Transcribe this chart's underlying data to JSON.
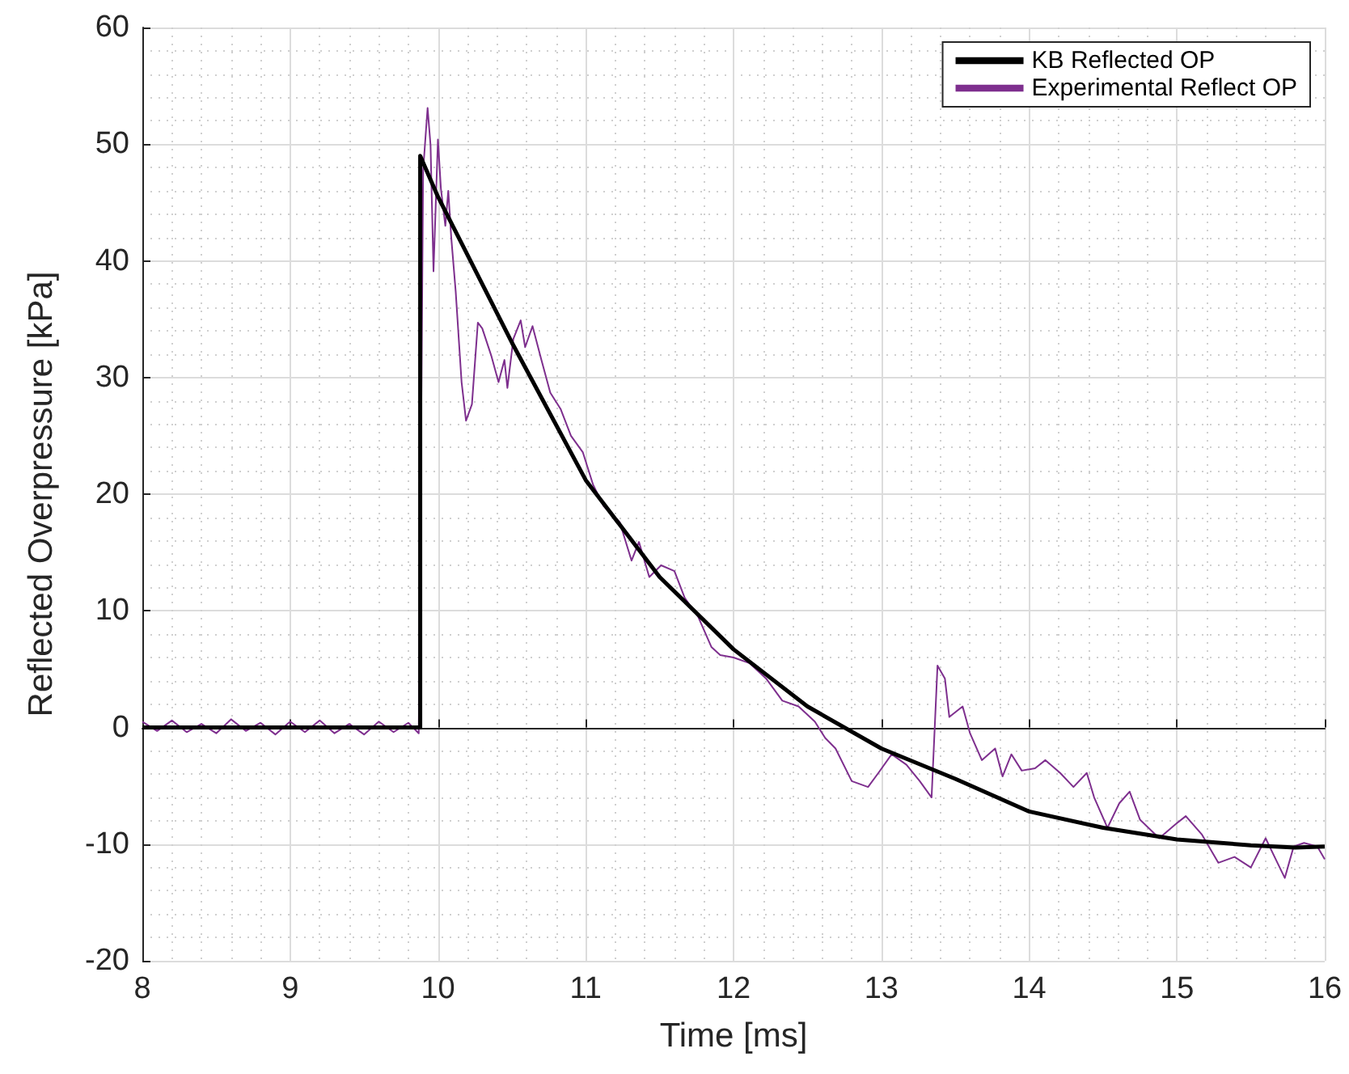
{
  "chart_data": {
    "type": "line",
    "xlabel": "Time [ms]",
    "ylabel": "Reflected Overpressure [kPa]",
    "xlim": [
      8,
      16
    ],
    "xticks": [
      8,
      9,
      10,
      11,
      12,
      13,
      14,
      15,
      16
    ],
    "ylim": [
      -20,
      60
    ],
    "yticks": [
      -20,
      -10,
      0,
      10,
      20,
      30,
      40,
      50,
      60
    ],
    "grid": true,
    "legend": "top right",
    "marker": "none",
    "line_style": "solid",
    "series": [
      {
        "name": "KB Reflected OP",
        "color": "#000000",
        "x": [
          8,
          9.88,
          9.88,
          10,
          10.5,
          11,
          11.5,
          12,
          12.5,
          13,
          13.5,
          14,
          14.5,
          15,
          15.5,
          15.8,
          16
        ],
        "values": [
          0,
          0,
          49,
          45.5,
          33,
          21.2,
          12.9,
          6.7,
          1.8,
          -1.8,
          -4.4,
          -7.2,
          -8.6,
          -9.6,
          -10.1,
          -10.3,
          -10.2
        ]
      },
      {
        "name": "Experimental Reflect OP",
        "color": "#7e2f8e",
        "x": [
          8,
          8.1,
          8.2,
          8.3,
          8.4,
          8.5,
          8.6,
          8.7,
          8.8,
          8.9,
          9.0,
          9.1,
          9.2,
          9.3,
          9.4,
          9.5,
          9.6,
          9.7,
          9.8,
          9.87,
          9.9,
          9.93,
          9.95,
          9.97,
          10.0,
          10.02,
          10.05,
          10.07,
          10.09,
          10.12,
          10.16,
          10.19,
          10.23,
          10.27,
          10.3,
          10.36,
          10.41,
          10.45,
          10.47,
          10.51,
          10.56,
          10.59,
          10.64,
          10.7,
          10.76,
          10.83,
          10.9,
          10.98,
          11.05,
          11.12,
          11.23,
          11.31,
          11.36,
          11.43,
          11.51,
          11.6,
          11.67,
          11.76,
          11.85,
          11.91,
          12.0,
          12.11,
          12.22,
          12.33,
          12.44,
          12.55,
          12.62,
          12.69,
          12.8,
          12.91,
          12.98,
          13.07,
          13.17,
          13.26,
          13.34,
          13.38,
          13.43,
          13.46,
          13.55,
          13.6,
          13.68,
          13.77,
          13.82,
          13.88,
          13.95,
          14.04,
          14.11,
          14.21,
          14.3,
          14.39,
          14.44,
          14.53,
          14.61,
          14.68,
          14.75,
          14.88,
          14.99,
          15.06,
          15.17,
          15.28,
          15.39,
          15.5,
          15.6,
          15.68,
          15.73,
          15.79,
          15.86,
          15.95,
          16.0
        ],
        "values": [
          0.5,
          -0.3,
          0.6,
          -0.4,
          0.3,
          -0.5,
          0.7,
          -0.3,
          0.4,
          -0.6,
          0.5,
          -0.4,
          0.6,
          -0.5,
          0.3,
          -0.6,
          0.5,
          -0.4,
          0.4,
          -0.5,
          47.8,
          53.1,
          49.9,
          39.1,
          50.4,
          46.2,
          43.0,
          46.0,
          42.0,
          37.4,
          29.6,
          26.3,
          27.7,
          34.7,
          34.2,
          31.9,
          29.6,
          31.5,
          29.1,
          33.3,
          34.9,
          32.6,
          34.4,
          31.5,
          28.7,
          27.3,
          25.0,
          23.6,
          20.8,
          19.0,
          17.6,
          14.3,
          15.9,
          12.9,
          13.9,
          13.4,
          11.1,
          9.5,
          6.9,
          6.2,
          6.0,
          5.5,
          4.2,
          2.3,
          1.8,
          0.5,
          -0.9,
          -1.8,
          -4.6,
          -5.1,
          -3.9,
          -2.3,
          -3.2,
          -4.6,
          -6.0,
          5.3,
          4.2,
          0.9,
          1.8,
          -0.5,
          -2.8,
          -1.8,
          -4.2,
          -2.3,
          -3.7,
          -3.5,
          -2.8,
          -3.9,
          -5.1,
          -3.9,
          -6.0,
          -8.6,
          -6.5,
          -5.5,
          -7.9,
          -9.5,
          -8.3,
          -7.6,
          -9.2,
          -11.6,
          -11.1,
          -12.0,
          -9.5,
          -11.6,
          -12.9,
          -10.2,
          -9.9,
          -10.2,
          -11.3
        ]
      }
    ]
  }
}
